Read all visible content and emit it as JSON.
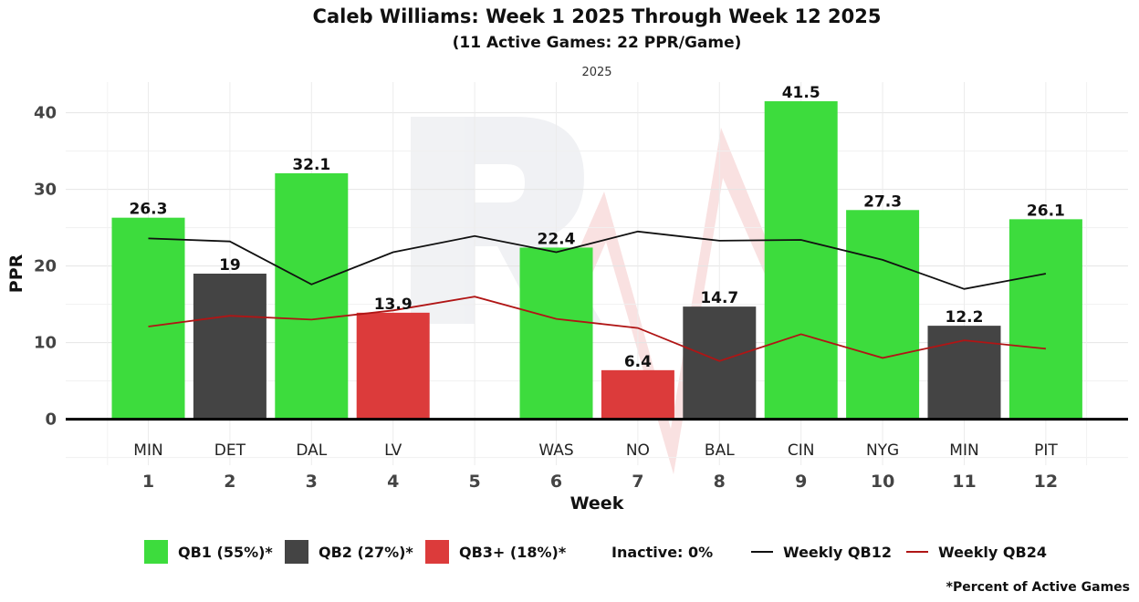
{
  "chart_data": {
    "type": "bar",
    "title": "Caleb Williams: Week 1 2025 Through Week 12 2025",
    "subtitle": "(11 Active Games: 22 PPR/Game)",
    "facet_label": "2025",
    "xlabel": "Week",
    "ylabel": "PPR",
    "ylim": [
      -6,
      44
    ],
    "yticks": [
      0,
      10,
      20,
      30,
      40
    ],
    "weeks": [
      1,
      2,
      3,
      4,
      5,
      6,
      7,
      8,
      9,
      10,
      11,
      12
    ],
    "opponents": [
      "MIN",
      "DET",
      "DAL",
      "LV",
      "",
      "WAS",
      "NO",
      "BAL",
      "CIN",
      "NYG",
      "MIN",
      "PIT"
    ],
    "values": [
      26.3,
      19,
      32.1,
      13.9,
      null,
      22.4,
      6.4,
      14.7,
      41.5,
      27.3,
      12.2,
      26.1
    ],
    "value_labels": [
      "26.3",
      "19",
      "32.1",
      "13.9",
      "",
      "22.4",
      "6.4",
      "14.7",
      "41.5",
      "27.3",
      "12.2",
      "26.1"
    ],
    "tiers": [
      "QB1",
      "QB2",
      "QB1",
      "QB3+",
      "",
      "QB1",
      "QB3+",
      "QB2",
      "QB1",
      "QB1",
      "QB2",
      "QB1"
    ],
    "tier_colors": {
      "QB1": "#3ddc3d",
      "QB2": "#444444",
      "QB3+": "#dc3b3b"
    },
    "lines": [
      {
        "name": "Weekly QB12",
        "color": "#111111",
        "values": [
          23.6,
          23.2,
          17.6,
          21.8,
          23.9,
          21.8,
          24.5,
          23.3,
          23.4,
          20.8,
          17.0,
          19.0
        ]
      },
      {
        "name": "Weekly QB24",
        "color": "#b01515",
        "values": [
          12.1,
          13.5,
          13.0,
          14.2,
          16.0,
          13.1,
          11.9,
          7.6,
          11.1,
          8.0,
          10.3,
          9.2
        ]
      }
    ],
    "legend": {
      "items": [
        {
          "label": "QB1 (55%)*",
          "color": "#3ddc3d",
          "kind": "box"
        },
        {
          "label": "QB2 (27%)*",
          "color": "#444444",
          "kind": "box"
        },
        {
          "label": "QB3+ (18%)*",
          "color": "#dc3b3b",
          "kind": "box"
        },
        {
          "label": "Inactive: 0%",
          "kind": "text"
        },
        {
          "label": "Weekly QB12",
          "color": "#111111",
          "kind": "line"
        },
        {
          "label": "Weekly QB24",
          "color": "#b01515",
          "kind": "line"
        }
      ],
      "position": "bottom"
    },
    "footnote": "*Percent of Active Games"
  }
}
